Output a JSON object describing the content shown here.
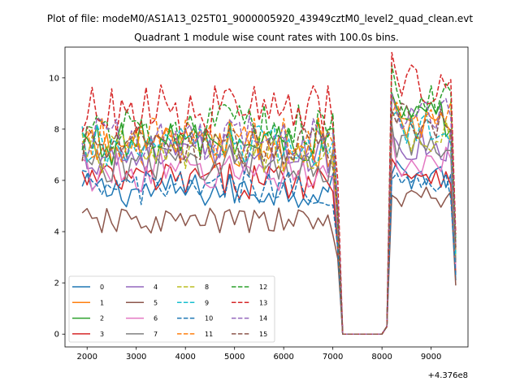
{
  "chart_data": {
    "type": "line",
    "suptitle": "Plot of file: modeM0/AS1A13_025T01_9000005920_43949cztM0_level2_quad_clean.evt",
    "title": "Quadrant 1 module wise count rates with 100.0s bins.",
    "xlabel": "",
    "ylabel": "",
    "x_offset_label": "+4.376e8",
    "xlim": [
      1550,
      9750
    ],
    "ylim": [
      -0.5,
      11.2
    ],
    "xticks": [
      2000,
      3000,
      4000,
      5000,
      6000,
      7000,
      8000,
      9000
    ],
    "yticks": [
      0,
      2,
      4,
      6,
      8,
      10
    ],
    "legend": {
      "placement": "lower-left",
      "columns": 4
    },
    "x_segments": [
      {
        "start": 1900,
        "end": 7000,
        "step": 100
      },
      {
        "start": 7100,
        "end": 8100,
        "step": 100
      },
      {
        "start": 8200,
        "end": 9500,
        "step": 100
      }
    ],
    "dip": {
      "x": [
        7100,
        7200,
        8000,
        8100
      ],
      "y": [
        4.0,
        0.0,
        0.0,
        0.3
      ]
    },
    "series": [
      {
        "name": "0",
        "color": "#1f77b4",
        "dash": "solid",
        "level1": 5.6,
        "level2": 6.2,
        "end": 2.1
      },
      {
        "name": "1",
        "color": "#ff7f0e",
        "dash": "solid",
        "level1": 7.2,
        "level2": 8.1,
        "end": 3.2
      },
      {
        "name": "2",
        "color": "#2ca02c",
        "dash": "solid",
        "level1": 7.5,
        "level2": 8.4,
        "end": 3.4
      },
      {
        "name": "3",
        "color": "#d62728",
        "dash": "solid",
        "level1": 6.0,
        "level2": 6.3,
        "end": 2.4
      },
      {
        "name": "4",
        "color": "#9467bd",
        "dash": "solid",
        "level1": 7.0,
        "level2": 7.4,
        "end": 2.9
      },
      {
        "name": "5",
        "color": "#8c564b",
        "dash": "solid",
        "level1": 4.4,
        "level2": 5.3,
        "end": 1.9
      },
      {
        "name": "6",
        "color": "#e377c2",
        "dash": "solid",
        "level1": 6.3,
        "level2": 6.7,
        "end": 2.6
      },
      {
        "name": "7",
        "color": "#7f7f7f",
        "dash": "solid",
        "level1": 6.7,
        "level2": 7.2,
        "end": 2.8
      },
      {
        "name": "8",
        "color": "#bcbd22",
        "dash": "dashed",
        "level1": 7.1,
        "level2": 7.7,
        "end": 3.0
      },
      {
        "name": "9",
        "color": "#17becf",
        "dash": "dashed",
        "level1": 7.3,
        "level2": 7.9,
        "end": 3.1
      },
      {
        "name": "10",
        "color": "#1f77b4",
        "dash": "dashed",
        "level1": 5.7,
        "level2": 5.8,
        "end": 2.3
      },
      {
        "name": "11",
        "color": "#ff7f0e",
        "dash": "dashed",
        "level1": 7.6,
        "level2": 8.5,
        "end": 3.3
      },
      {
        "name": "12",
        "color": "#2ca02c",
        "dash": "dashed",
        "level1": 8.0,
        "level2": 9.1,
        "end": 3.6
      },
      {
        "name": "13",
        "color": "#d62728",
        "dash": "dashed",
        "level1": 8.7,
        "level2": 9.8,
        "end": 3.9
      },
      {
        "name": "14",
        "color": "#9467bd",
        "dash": "dashed",
        "level1": 7.6,
        "level2": 8.6,
        "end": 3.4
      },
      {
        "name": "15",
        "color": "#8c564b",
        "dash": "dashed",
        "level1": 7.3,
        "level2": 8.3,
        "end": 3.3
      }
    ]
  }
}
